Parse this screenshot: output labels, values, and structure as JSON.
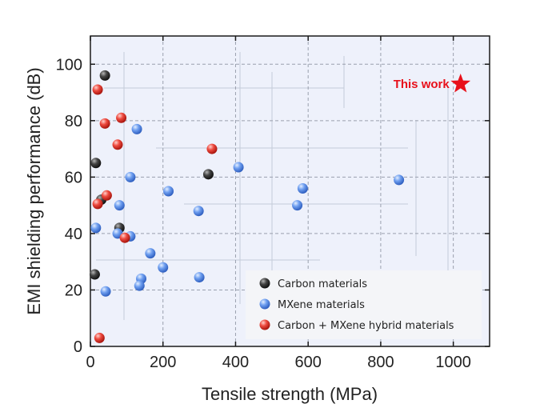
{
  "chart_data": {
    "type": "scatter",
    "xlabel": "Tensile strength (MPa)",
    "ylabel": "EMI shielding performance (dB)",
    "xlim": [
      0,
      1100
    ],
    "ylim": [
      0,
      110
    ],
    "xticks": [
      0,
      200,
      400,
      600,
      800,
      1000
    ],
    "yticks": [
      0,
      20,
      40,
      60,
      80,
      100
    ],
    "grid": true,
    "legend_position": "bottom-right",
    "series": [
      {
        "name": "Carbon materials",
        "color": "#3a3a3a",
        "points": [
          [
            40,
            96
          ],
          [
            15,
            65
          ],
          [
            30,
            52
          ],
          [
            80,
            42
          ],
          [
            12,
            25.5
          ],
          [
            325,
            61
          ]
        ]
      },
      {
        "name": "MXene materials",
        "color": "#5b8fe6",
        "points": [
          [
            128,
            77
          ],
          [
            110,
            60
          ],
          [
            215,
            55
          ],
          [
            80,
            50
          ],
          [
            298,
            48
          ],
          [
            408,
            63.5
          ],
          [
            585,
            56
          ],
          [
            570,
            50
          ],
          [
            850,
            59
          ],
          [
            15,
            42
          ],
          [
            75,
            40
          ],
          [
            110,
            39
          ],
          [
            165,
            33
          ],
          [
            200,
            28
          ],
          [
            140,
            24
          ],
          [
            135,
            21.5
          ],
          [
            300,
            24.5
          ],
          [
            42,
            19.5
          ]
        ]
      },
      {
        "name": "Carbon + MXene hybrid materials",
        "color": "#e8382e",
        "points": [
          [
            20,
            91
          ],
          [
            40,
            79
          ],
          [
            85,
            81
          ],
          [
            75,
            71.5
          ],
          [
            335,
            70
          ],
          [
            45,
            53.5
          ],
          [
            20,
            50.5
          ],
          [
            95,
            38.5
          ],
          [
            25,
            3
          ]
        ]
      }
    ],
    "annotations": [
      {
        "text": "This work",
        "x": 1020,
        "y": 93,
        "marker": "star",
        "color": "#e8101a"
      }
    ]
  }
}
